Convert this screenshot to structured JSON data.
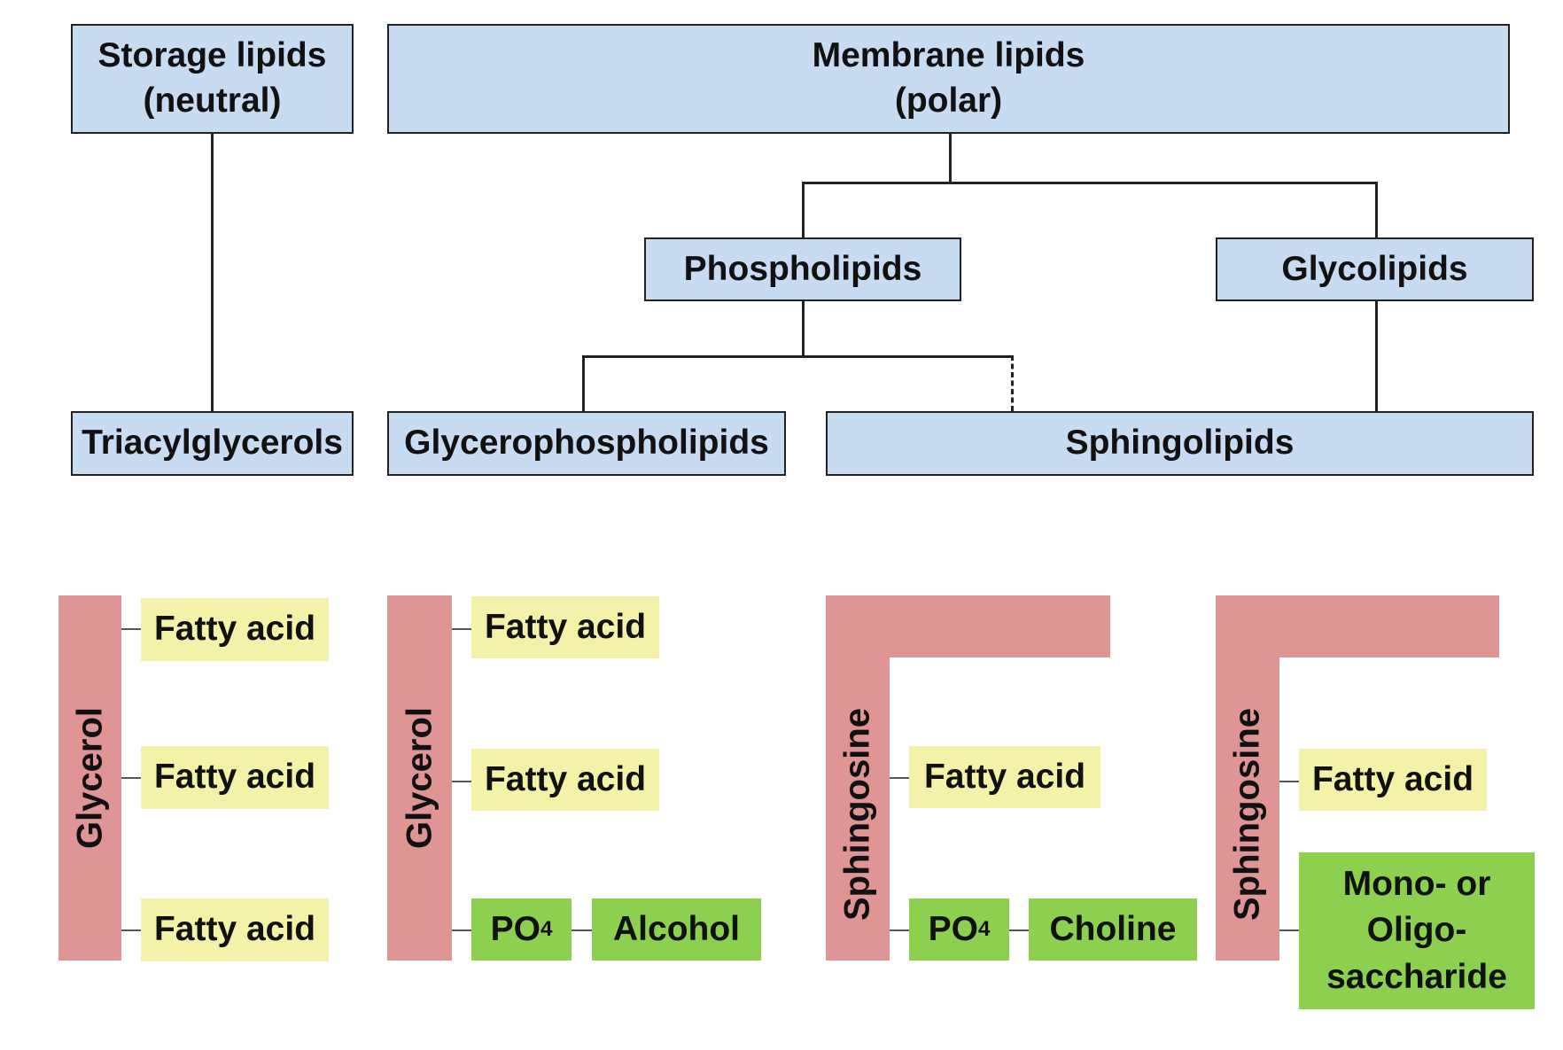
{
  "top": {
    "storage_line1": "Storage lipids",
    "storage_line2": "(neutral)",
    "membrane_line1": "Membrane lipids",
    "membrane_line2": "(polar)"
  },
  "middle": {
    "phospholipids": "Phospholipids",
    "glycolipids": "Glycolipids"
  },
  "lower": {
    "triacylglycerols": "Triacylglycerols",
    "glycerophospholipids": "Glycerophospholipids",
    "sphingolipids": "Sphingolipids"
  },
  "structures": {
    "triacylglycerol": {
      "backbone": "Glycerol",
      "chains": [
        "Fatty acid",
        "Fatty acid",
        "Fatty acid"
      ]
    },
    "glycerophospholipid": {
      "backbone": "Glycerol",
      "chains": [
        "Fatty acid",
        "Fatty acid"
      ],
      "phosphate": "PO",
      "phosphate_subscript": "4",
      "head": "Alcohol"
    },
    "sphingophospholipid": {
      "backbone": "Sphingosine",
      "chain": "Fatty acid",
      "phosphate": "PO",
      "phosphate_subscript": "4",
      "head": "Choline"
    },
    "glycosphingolipid": {
      "backbone": "Sphingosine",
      "chain": "Fatty acid",
      "head_line1": "Mono- or",
      "head_line2": "Oligo-",
      "head_line3": "saccharide"
    }
  },
  "colors": {
    "class_box": "#c7dbf1",
    "backbone": "#df9594",
    "fatty_acid": "#f4f2a9",
    "head_group": "#8dcf4f"
  }
}
